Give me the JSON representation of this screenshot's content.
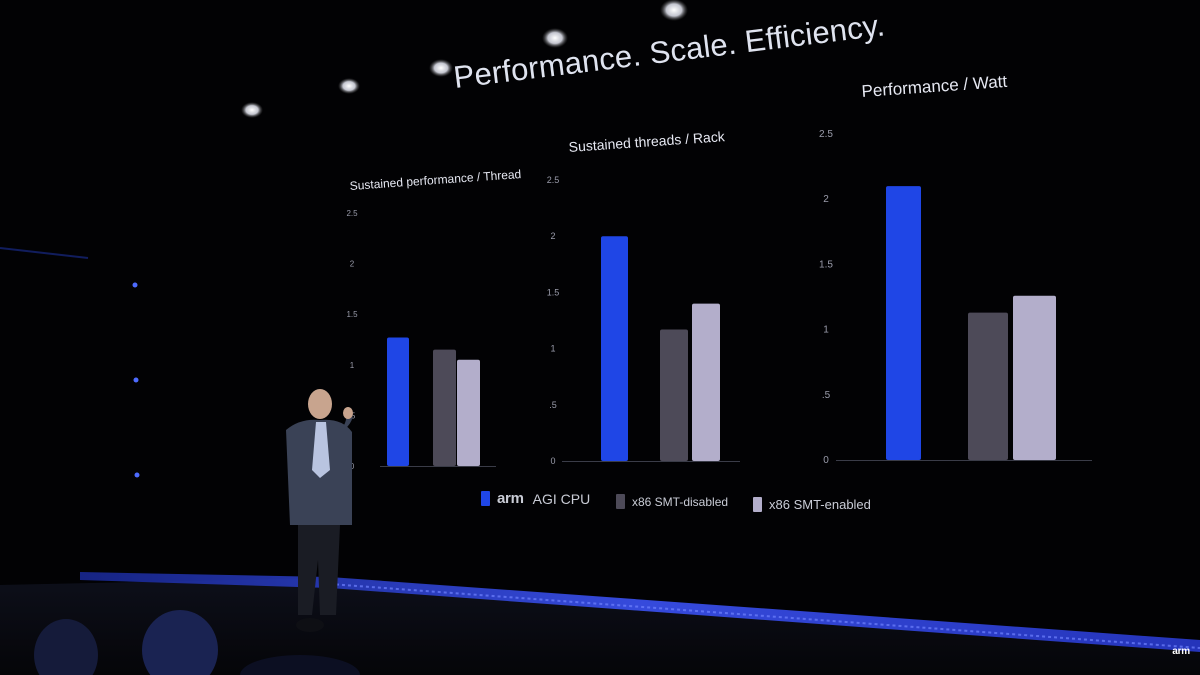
{
  "slide": {
    "title": "Performance. Scale. Efficiency.",
    "brand": "arm",
    "watermark": "arm"
  },
  "legend": [
    {
      "brand": "arm",
      "label": "AGI CPU",
      "color": "#1f46e6"
    },
    {
      "brand": "",
      "label": "x86 SMT-disabled",
      "color": "#4d4a58"
    },
    {
      "brand": "",
      "label": "x86 SMT-enabled",
      "color": "#b3aecb"
    }
  ],
  "chart_data": [
    {
      "type": "bar",
      "title": "Sustained performance / Thread",
      "categories": [
        "arm AGI CPU",
        "x86 SMT-disabled",
        "x86 SMT-enabled"
      ],
      "values": [
        1.27,
        1.15,
        1.05
      ],
      "yticks": [
        "0",
        ".5",
        "1",
        "1.5",
        "2",
        "2.5"
      ],
      "ylim": [
        0,
        2.5
      ],
      "colors": [
        "#1f46e6",
        "#4d4a58",
        "#b3aecb"
      ]
    },
    {
      "type": "bar",
      "title": "Sustained threads / Rack",
      "categories": [
        "arm AGI CPU",
        "x86 SMT-disabled",
        "x86 SMT-enabled"
      ],
      "values": [
        2.0,
        1.17,
        1.4
      ],
      "yticks": [
        "0",
        ".5",
        "1",
        "1.5",
        "2",
        "2.5"
      ],
      "ylim": [
        0,
        2.5
      ],
      "colors": [
        "#1f46e6",
        "#4d4a58",
        "#b3aecb"
      ]
    },
    {
      "type": "bar",
      "title": "Performance / Watt",
      "categories": [
        "arm AGI CPU",
        "x86 SMT-disabled",
        "x86 SMT-enabled"
      ],
      "values": [
        2.1,
        1.13,
        1.26
      ],
      "yticks": [
        "0",
        ".5",
        "1",
        "1.5",
        "2",
        "2.5"
      ],
      "ylim": [
        0,
        2.5
      ],
      "colors": [
        "#1f46e6",
        "#4d4a58",
        "#b3aecb"
      ]
    }
  ]
}
